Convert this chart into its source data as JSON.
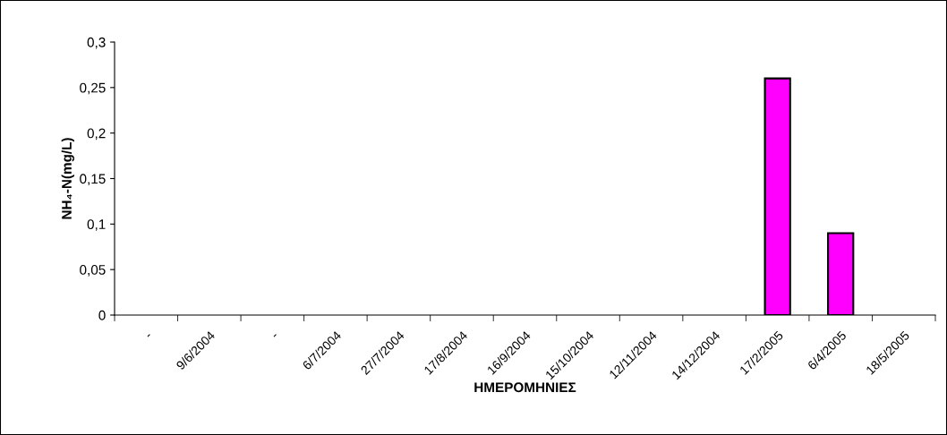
{
  "chart_data": {
    "type": "bar",
    "xlabel": "ΗΜΕΡΟΜΗΝΙΕΣ",
    "ylabel": "NH₄-N(mg/L)",
    "categories": [
      "-",
      "9/6/2004",
      "-",
      "6/7/2004",
      "27/7/2004",
      "17/8/2004",
      "16/9/2004",
      "15/10/2004",
      "12/11/2004",
      "14/12/2004",
      "17/2/2005",
      "6/4/2005",
      "18/5/2005"
    ],
    "values": [
      null,
      null,
      null,
      null,
      null,
      null,
      null,
      null,
      null,
      null,
      0.26,
      0.09,
      null
    ],
    "color": "#ff00ff",
    "ylim": [
      0,
      0.3
    ],
    "yticks": [
      0,
      {
        "value": 0.05,
        "label": "0,05"
      },
      {
        "value": 0.1,
        "label": "0,1"
      },
      {
        "value": 0.15,
        "label": "0,15"
      },
      {
        "value": 0.2,
        "label": "0,2"
      },
      {
        "value": 0.25,
        "label": "0,25"
      },
      {
        "value": 0.3,
        "label": "0,3"
      }
    ],
    "grid": false,
    "legend": false
  }
}
